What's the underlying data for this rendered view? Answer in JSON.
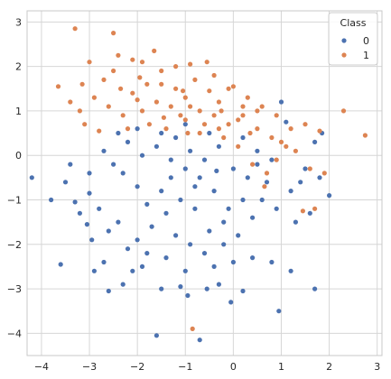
{
  "chart_data": {
    "type": "scatter",
    "title": "",
    "xlabel": "",
    "ylabel": "",
    "xlim": [
      -4.3,
      3.1
    ],
    "ylim": [
      -4.5,
      3.25
    ],
    "xticks": [
      -4,
      -3,
      -2,
      -1,
      0,
      1,
      2,
      3
    ],
    "yticks": [
      -4,
      -3,
      -2,
      -1,
      0,
      1,
      2,
      3
    ],
    "grid": true,
    "legend": {
      "title": "Class",
      "placement": "top-right",
      "entries": [
        {
          "label": "0",
          "color": "#4c72b0"
        },
        {
          "label": "1",
          "color": "#dd8452"
        }
      ]
    },
    "series": [
      {
        "name": "0",
        "color": "#4c72b0",
        "points": [
          [
            -1.6,
            -4.05
          ],
          [
            -0.7,
            -4.15
          ],
          [
            -4.2,
            -0.5
          ],
          [
            -3.8,
            -1.0
          ],
          [
            -3.6,
            -2.45
          ],
          [
            -3.4,
            -0.2
          ],
          [
            -3.0,
            -0.85
          ],
          [
            -3.05,
            -1.55
          ],
          [
            -2.95,
            -1.9
          ],
          [
            -2.7,
            -2.4
          ],
          [
            -2.6,
            -3.05
          ],
          [
            -2.1,
            -2.6
          ],
          [
            -1.9,
            -2.5
          ],
          [
            -1.5,
            -3.0
          ],
          [
            -1.1,
            -2.95
          ],
          [
            -0.95,
            -3.15
          ],
          [
            -0.55,
            -3.0
          ],
          [
            -0.3,
            -2.9
          ],
          [
            0.2,
            -3.05
          ],
          [
            0.95,
            -3.5
          ],
          [
            1.7,
            -3.0
          ],
          [
            1.2,
            -2.6
          ],
          [
            0.8,
            -2.4
          ],
          [
            0.4,
            -2.3
          ],
          [
            2.0,
            -0.9
          ],
          [
            1.8,
            -0.5
          ],
          [
            1.6,
            -1.3
          ],
          [
            1.3,
            -1.5
          ],
          [
            1.5,
            -0.3
          ],
          [
            1.85,
            0.5
          ],
          [
            1.7,
            0.3
          ],
          [
            1.1,
            0.75
          ],
          [
            1.0,
            1.2
          ],
          [
            0.7,
            -0.6
          ],
          [
            0.2,
            -1.0
          ],
          [
            -0.2,
            -1.5
          ],
          [
            -0.5,
            -1.7
          ],
          [
            -0.8,
            -1.2
          ],
          [
            -1.1,
            -1.0
          ],
          [
            -1.3,
            -0.5
          ],
          [
            -1.5,
            -0.8
          ],
          [
            -1.8,
            -1.1
          ],
          [
            -2.0,
            -0.7
          ],
          [
            -2.3,
            -0.4
          ],
          [
            -2.5,
            -0.2
          ],
          [
            -2.7,
            0.1
          ],
          [
            -2.2,
            0.3
          ],
          [
            -1.9,
            0.0
          ],
          [
            -1.6,
            0.2
          ],
          [
            -1.2,
            0.4
          ],
          [
            -0.9,
            0.1
          ],
          [
            -0.6,
            -0.1
          ],
          [
            -0.3,
            0.2
          ],
          [
            0.0,
            -0.3
          ],
          [
            0.3,
            -0.5
          ],
          [
            0.5,
            -0.2
          ],
          [
            -0.4,
            -0.8
          ],
          [
            -0.7,
            -0.5
          ],
          [
            -1.0,
            -0.3
          ],
          [
            -1.4,
            -1.3
          ],
          [
            -1.7,
            -1.6
          ],
          [
            -2.0,
            -1.9
          ],
          [
            -2.4,
            -1.5
          ],
          [
            -2.8,
            -1.2
          ],
          [
            -3.2,
            -1.3
          ],
          [
            -3.5,
            -0.6
          ],
          [
            -1.2,
            -1.8
          ],
          [
            -0.9,
            -2.0
          ],
          [
            -0.6,
            -2.2
          ],
          [
            -0.2,
            -2.0
          ],
          [
            0.1,
            -1.8
          ],
          [
            0.4,
            -1.4
          ],
          [
            0.6,
            -1.0
          ],
          [
            0.9,
            -1.2
          ],
          [
            -1.8,
            -2.2
          ],
          [
            -2.2,
            -2.1
          ],
          [
            -1.4,
            -2.3
          ],
          [
            -1.0,
            -2.6
          ],
          [
            -0.4,
            -2.5
          ],
          [
            0.0,
            -2.4
          ],
          [
            -2.6,
            -1.7
          ],
          [
            -3.0,
            -0.4
          ],
          [
            -2.4,
            0.5
          ],
          [
            -2.0,
            0.6
          ],
          [
            -1.5,
            0.5
          ],
          [
            -1.0,
            0.7
          ],
          [
            -0.5,
            0.5
          ],
          [
            0.2,
            0.4
          ],
          [
            0.5,
            0.1
          ],
          [
            0.8,
            -0.1
          ],
          [
            1.2,
            -0.8
          ],
          [
            1.4,
            -0.6
          ],
          [
            -3.3,
            -1.05
          ],
          [
            -2.9,
            -2.6
          ],
          [
            -2.3,
            -2.9
          ],
          [
            -0.05,
            -3.3
          ],
          [
            -1.3,
            -0.1
          ],
          [
            -0.8,
            -0.7
          ],
          [
            -0.1,
            -1.2
          ],
          [
            -0.35,
            -0.35
          ]
        ]
      },
      {
        "name": "1",
        "color": "#dd8452",
        "points": [
          [
            -3.3,
            2.85
          ],
          [
            -2.5,
            2.75
          ],
          [
            -1.65,
            2.35
          ],
          [
            -1.9,
            2.1
          ],
          [
            -2.1,
            2.15
          ],
          [
            -2.4,
            2.25
          ],
          [
            -3.0,
            2.1
          ],
          [
            -3.15,
            1.6
          ],
          [
            -3.65,
            1.55
          ],
          [
            -3.2,
            1.0
          ],
          [
            -2.9,
            1.3
          ],
          [
            -2.6,
            1.1
          ],
          [
            -2.3,
            0.9
          ],
          [
            -2.1,
            1.4
          ],
          [
            -1.8,
            1.6
          ],
          [
            -1.5,
            1.9
          ],
          [
            -1.2,
            1.5
          ],
          [
            -1.0,
            1.3
          ],
          [
            -0.8,
            1.7
          ],
          [
            -0.5,
            1.45
          ],
          [
            -0.3,
            1.2
          ],
          [
            0.0,
            1.55
          ],
          [
            0.3,
            1.3
          ],
          [
            0.6,
            1.1
          ],
          [
            0.9,
            0.9
          ],
          [
            1.2,
            0.6
          ],
          [
            1.5,
            0.7
          ],
          [
            1.8,
            0.55
          ],
          [
            2.3,
            1.0
          ],
          [
            2.75,
            0.45
          ],
          [
            1.6,
            -0.3
          ],
          [
            1.9,
            -0.4
          ],
          [
            1.1,
            0.2
          ],
          [
            0.8,
            0.4
          ],
          [
            0.5,
            0.6
          ],
          [
            0.2,
            0.9
          ],
          [
            -0.1,
            0.7
          ],
          [
            -0.4,
            0.9
          ],
          [
            -0.7,
            1.0
          ],
          [
            -1.0,
            0.8
          ],
          [
            -1.3,
            1.1
          ],
          [
            -1.6,
            1.2
          ],
          [
            -1.9,
            1.0
          ],
          [
            -2.2,
            0.6
          ],
          [
            -1.75,
            0.7
          ],
          [
            -1.4,
            0.6
          ],
          [
            -1.1,
            0.9
          ],
          [
            -0.9,
            1.1
          ],
          [
            -0.6,
            0.7
          ],
          [
            -0.2,
            0.4
          ],
          [
            0.1,
            0.2
          ],
          [
            0.4,
            -0.2
          ],
          [
            0.7,
            -0.4
          ],
          [
            0.9,
            -0.1
          ],
          [
            1.0,
            0.3
          ],
          [
            -0.85,
            -3.9
          ],
          [
            -1.5,
            1.6
          ],
          [
            -1.2,
            2.0
          ],
          [
            -0.9,
            2.05
          ],
          [
            -0.4,
            1.8
          ],
          [
            -0.1,
            1.5
          ],
          [
            0.5,
            1.0
          ],
          [
            -2.7,
            1.7
          ],
          [
            -2.5,
            1.9
          ],
          [
            -1.95,
            1.75
          ],
          [
            -0.7,
            0.5
          ],
          [
            -0.3,
            0.6
          ],
          [
            0.1,
            0.8
          ],
          [
            0.35,
            0.5
          ],
          [
            -1.05,
            1.45
          ],
          [
            -1.45,
            0.85
          ],
          [
            -2.0,
            1.25
          ],
          [
            -2.35,
            1.5
          ],
          [
            -3.4,
            1.2
          ],
          [
            -3.1,
            0.7
          ],
          [
            -2.8,
            0.55
          ],
          [
            0.65,
            -0.7
          ],
          [
            1.3,
            0.1
          ],
          [
            1.7,
            -1.2
          ],
          [
            1.45,
            -1.25
          ],
          [
            -0.55,
            2.1
          ],
          [
            -0.25,
            1.0
          ],
          [
            0.2,
            1.1
          ],
          [
            -0.95,
            0.5
          ]
        ]
      }
    ]
  }
}
